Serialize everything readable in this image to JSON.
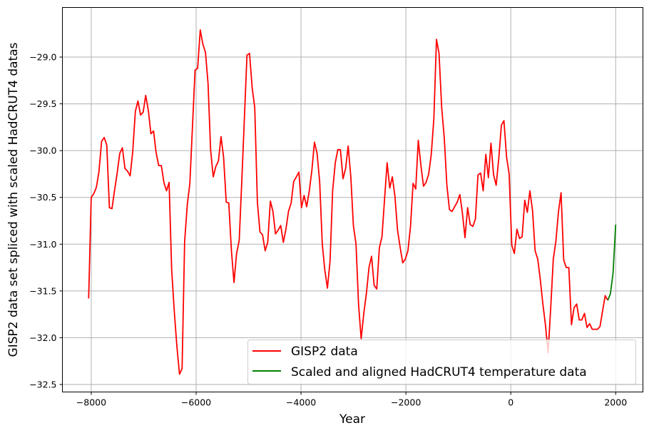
{
  "chart_data": {
    "type": "line",
    "title": "",
    "xlabel": "Year",
    "ylabel": "GISP2 data set spliced with scaled HadCRUT4 datas",
    "xlim": [
      -8550,
      2520
    ],
    "ylim": [
      -32.58,
      -28.47
    ],
    "xticks": [
      -8000,
      -6000,
      -4000,
      -2000,
      0,
      2000
    ],
    "xtick_labels": [
      "−8000",
      "−6000",
      "−4000",
      "−2000",
      "0",
      "2000"
    ],
    "yticks": [
      -29.0,
      -29.5,
      -30.0,
      -30.5,
      -31.0,
      -31.5,
      -32.0,
      -32.5
    ],
    "ytick_labels": [
      "−29.0",
      "−29.5",
      "−30.0",
      "−30.5",
      "−31.0",
      "−31.5",
      "−32.0",
      "−32.5"
    ],
    "grid": true,
    "legend_position": "lower-right",
    "series": [
      {
        "name": "GISP2 data",
        "color": "#ff0000",
        "x_start": -8050,
        "x_step": 49.5,
        "y": [
          -31.58,
          -30.5,
          -30.46,
          -30.39,
          -30.22,
          -29.9,
          -29.86,
          -29.94,
          -30.61,
          -30.62,
          -30.42,
          -30.24,
          -30.03,
          -29.97,
          -30.19,
          -30.22,
          -30.27,
          -30.01,
          -29.58,
          -29.47,
          -29.62,
          -29.59,
          -29.41,
          -29.57,
          -29.82,
          -29.79,
          -30.02,
          -30.16,
          -30.16,
          -30.34,
          -30.43,
          -30.34,
          -31.27,
          -31.72,
          -32.09,
          -32.39,
          -32.33,
          -30.97,
          -30.58,
          -30.35,
          -29.74,
          -29.14,
          -29.12,
          -28.71,
          -28.86,
          -28.95,
          -29.28,
          -29.99,
          -30.28,
          -30.17,
          -30.11,
          -29.85,
          -30.07,
          -30.55,
          -30.56,
          -31.07,
          -31.41,
          -31.1,
          -30.96,
          -30.33,
          -29.65,
          -28.98,
          -28.96,
          -29.33,
          -29.54,
          -30.55,
          -30.87,
          -30.9,
          -31.07,
          -30.98,
          -30.54,
          -30.65,
          -30.89,
          -30.85,
          -30.8,
          -30.98,
          -30.84,
          -30.65,
          -30.56,
          -30.33,
          -30.28,
          -30.23,
          -30.61,
          -30.48,
          -30.6,
          -30.43,
          -30.21,
          -29.91,
          -30.03,
          -30.33,
          -31.0,
          -31.28,
          -31.47,
          -31.18,
          -30.43,
          -30.13,
          -29.99,
          -29.99,
          -30.3,
          -30.19,
          -29.95,
          -30.28,
          -30.8,
          -31.0,
          -31.65,
          -32.01,
          -31.74,
          -31.53,
          -31.25,
          -31.13,
          -31.44,
          -31.48,
          -31.04,
          -30.92,
          -30.52,
          -30.13,
          -30.4,
          -30.28,
          -30.49,
          -30.85,
          -31.03,
          -31.2,
          -31.16,
          -31.07,
          -30.81,
          -30.35,
          -30.41,
          -29.89,
          -30.16,
          -30.38,
          -30.34,
          -30.25,
          -30.04,
          -29.65,
          -28.81,
          -28.96,
          -29.54,
          -29.86,
          -30.37,
          -30.63,
          -30.65,
          -30.6,
          -30.55,
          -30.47,
          -30.67,
          -30.93,
          -30.61,
          -30.79,
          -30.81,
          -30.73,
          -30.26,
          -30.24,
          -30.43,
          -30.04,
          -30.29,
          -29.92,
          -30.26,
          -30.37,
          -30.08,
          -29.73,
          -29.68,
          -30.07,
          -30.25,
          -31.01,
          -31.1,
          -30.84,
          -30.94,
          -30.92,
          -30.53,
          -30.66,
          -30.43,
          -30.64,
          -31.07,
          -31.16,
          -31.38,
          -31.64,
          -31.87,
          -32.16,
          -31.68,
          -31.16,
          -30.97,
          -30.65,
          -30.45,
          -31.17,
          -31.25,
          -31.25,
          -31.86,
          -31.68,
          -31.64,
          -31.81,
          -31.81,
          -31.74,
          -31.89,
          -31.85,
          -31.91,
          -31.91,
          -31.91,
          -31.88,
          -31.71,
          -31.55,
          -31.6
        ]
      },
      {
        "name": "Scaled and aligned HadCRUT4 temperature data",
        "color": "#008000",
        "x": [
          1850,
          1900,
          1950,
          2000
        ],
        "y": [
          -31.6,
          -31.53,
          -31.31,
          -30.79
        ]
      }
    ]
  }
}
